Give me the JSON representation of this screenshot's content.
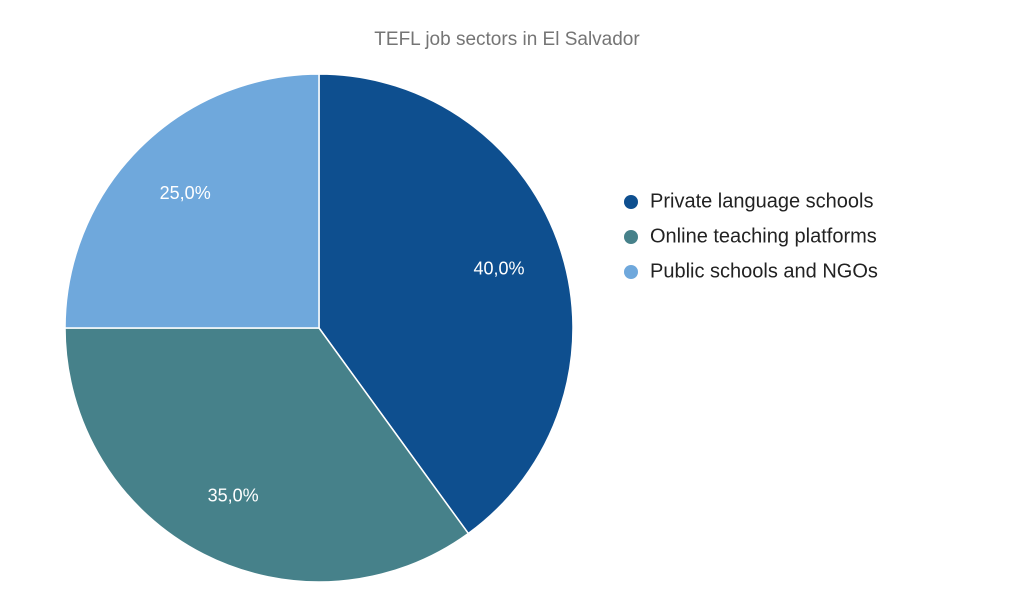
{
  "chart_data": {
    "type": "pie",
    "title": "TEFL job sectors in El Salvador",
    "categories": [
      "Private language schools",
      "Online teaching platforms",
      "Public schools and NGOs"
    ],
    "values": [
      40,
      35,
      25
    ],
    "value_labels": [
      "40,0%",
      "35,0%",
      "25,0%"
    ],
    "colors": [
      "#0e4f8f",
      "#46818a",
      "#6fa8dc"
    ],
    "legend": "right"
  }
}
